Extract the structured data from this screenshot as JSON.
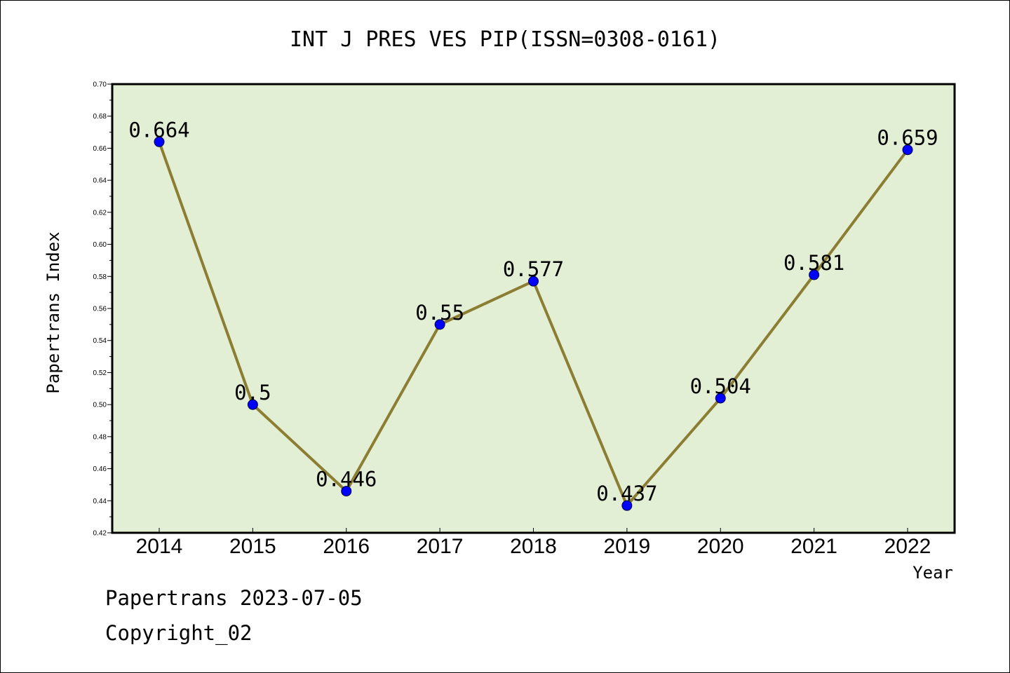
{
  "chart_data": {
    "type": "line",
    "title": "INT J PRES VES PIP(ISSN=0308-0161)",
    "xlabel": "Year",
    "ylabel": "Papertrans Index",
    "categories": [
      "2014",
      "2015",
      "2016",
      "2017",
      "2018",
      "2019",
      "2020",
      "2021",
      "2022"
    ],
    "series": [
      {
        "values": [
          0.664,
          0.5,
          0.446,
          0.55,
          0.577,
          0.437,
          0.504,
          0.581,
          0.659
        ],
        "labels": [
          "0.664",
          "0.5",
          "0.446",
          "0.55",
          "0.577",
          "0.437",
          "0.504",
          "0.581",
          "0.659"
        ]
      }
    ],
    "ylim": [
      0.42,
      0.7
    ],
    "yticks": [
      "0.42",
      "0.44",
      "0.46",
      "0.48",
      "0.50",
      "0.52",
      "0.54",
      "0.56",
      "0.58",
      "0.60",
      "0.62",
      "0.64",
      "0.66",
      "0.68",
      "0.70"
    ],
    "grid": false,
    "colors": {
      "plot_bg": "#e2efd5",
      "line": "#8b7d32",
      "marker": "#0000ff",
      "axis": "#000000"
    }
  },
  "footer": {
    "date_line": "Papertrans 2023-07-05",
    "copyright_line": "Copyright_02"
  }
}
